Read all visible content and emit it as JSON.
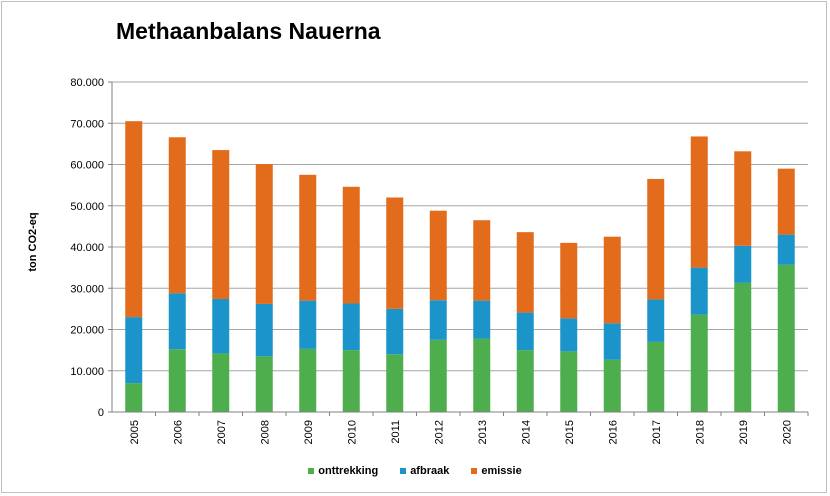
{
  "chart_data": {
    "type": "bar",
    "stacked": true,
    "title": "Methaanbalans Nauerna",
    "xlabel": "",
    "ylabel": "ton CO2-eq",
    "ylim": [
      0,
      80000
    ],
    "yticks": [
      "0",
      "10.000",
      "20.000",
      "30.000",
      "40.000",
      "50.000",
      "60.000",
      "70.000",
      "80.000"
    ],
    "grid": true,
    "legend_position": "bottom",
    "categories": [
      "2005",
      "2006",
      "2007",
      "2008",
      "2009",
      "2010",
      "2011",
      "2012",
      "2013",
      "2014",
      "2015",
      "2016",
      "2017",
      "2018",
      "2019",
      "2020"
    ],
    "series": [
      {
        "name": "onttrekking",
        "color": "#4eae4e",
        "values": [
          7000,
          15200,
          14200,
          13500,
          15300,
          15000,
          14000,
          17500,
          17800,
          15000,
          14700,
          12700,
          17000,
          23600,
          31300,
          35700
        ]
      },
      {
        "name": "afbraak",
        "color": "#1b94c9",
        "values": [
          16000,
          13600,
          13200,
          12700,
          11700,
          11300,
          11000,
          9600,
          9200,
          9100,
          8000,
          8800,
          10300,
          11400,
          9000,
          7300
        ]
      },
      {
        "name": "emissie",
        "color": "#e36c1c",
        "values": [
          47500,
          37800,
          36100,
          33900,
          30500,
          28300,
          27000,
          21700,
          19500,
          19500,
          18300,
          21000,
          29200,
          31800,
          22900,
          16000
        ]
      }
    ]
  }
}
